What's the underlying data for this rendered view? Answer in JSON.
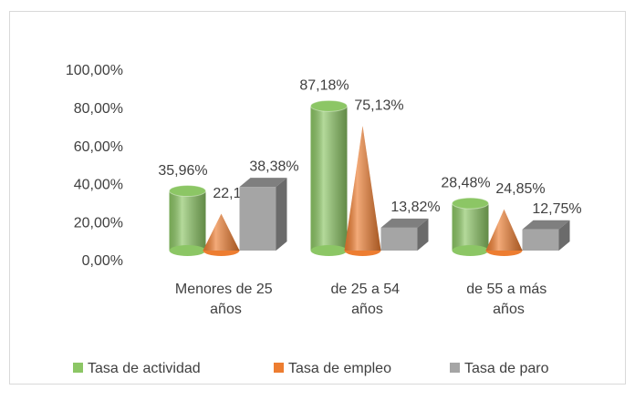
{
  "chart_data": {
    "type": "bar3d",
    "categories": [
      "Menores de 25 años",
      "de 25 a 54 años",
      "de 55 a más años"
    ],
    "series": [
      {
        "name": "Tasa de actividad",
        "color": "#8cc665",
        "shape": "cylinder",
        "values": [
          35.96,
          87.18,
          28.48
        ],
        "value_labels": [
          "35,96%",
          "87,18%",
          "28,48%"
        ]
      },
      {
        "name": "Tasa de empleo",
        "color": "#ed7d31",
        "shape": "cone",
        "values": [
          22.16,
          75.13,
          24.85
        ],
        "value_labels": [
          "22,16%",
          "75,13%",
          "24,85%"
        ]
      },
      {
        "name": "Tasa de paro",
        "color": "#a5a5a5",
        "shape": "box",
        "values": [
          38.38,
          13.82,
          12.75
        ],
        "value_labels": [
          "38,38%",
          "13,82%",
          "12,75%"
        ]
      }
    ],
    "ylim": [
      0,
      100
    ],
    "yticks": [
      {
        "value": 0,
        "label": "0,00%"
      },
      {
        "value": 20,
        "label": "20,00%"
      },
      {
        "value": 40,
        "label": "40,00%"
      },
      {
        "value": 60,
        "label": "60,00%"
      },
      {
        "value": 80,
        "label": "80,00%"
      },
      {
        "value": 100,
        "label": "100,00%"
      }
    ],
    "legend": "bottom"
  }
}
